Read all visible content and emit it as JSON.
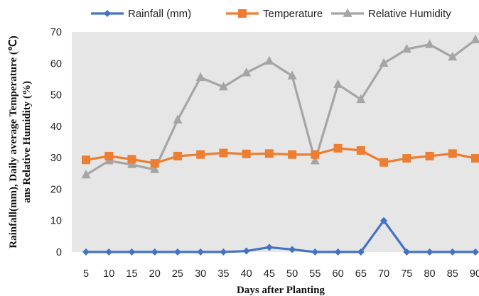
{
  "chart_data": {
    "type": "line",
    "x": [
      5,
      10,
      15,
      20,
      25,
      30,
      35,
      40,
      45,
      50,
      55,
      60,
      65,
      70,
      75,
      80,
      85,
      90
    ],
    "x_tick_labels": [
      "5",
      "10",
      "15",
      "20",
      "25",
      "30",
      "35",
      "40",
      "45",
      "50",
      "55",
      "60",
      "65",
      "70",
      "75",
      "80",
      "85",
      "90"
    ],
    "xlabel": "Days after Planting",
    "ylabel_line1": "Rainfall(mm), Daily average Temperature (℃)",
    "ylabel_line2": "ans Relative Humidity (%)",
    "ylim": [
      0,
      70
    ],
    "y_ticks": [
      0,
      10,
      20,
      30,
      40,
      50,
      60,
      70
    ],
    "y_tick_labels": [
      "0",
      "10",
      "20",
      "30",
      "40",
      "50",
      "60",
      "70"
    ],
    "grid": false,
    "plot_background": "#e6e6e6",
    "legend_position": "top",
    "series": [
      {
        "name": "Rainfall (mm)",
        "color": "#4472c4",
        "marker": "diamond",
        "values": [
          0,
          0,
          0,
          0,
          0,
          0,
          0,
          0.3,
          1.5,
          0.8,
          0,
          0,
          0,
          10,
          0,
          0,
          0,
          0
        ]
      },
      {
        "name": "Temperature",
        "color": "#ed7d31",
        "marker": "square",
        "values": [
          29.3,
          30.5,
          29.5,
          28.2,
          30.5,
          31,
          31.5,
          31.2,
          31.3,
          31,
          31,
          33,
          32.3,
          28.5,
          29.8,
          30.5,
          31.3,
          29.8
        ]
      },
      {
        "name": "Relative Humidity",
        "color": "#a5a5a5",
        "marker": "triangle",
        "values": [
          24.5,
          29,
          27.8,
          26.2,
          42,
          55.5,
          52.5,
          57,
          60.7,
          56,
          29,
          53.3,
          48.5,
          60,
          64.5,
          66,
          62,
          67.5
        ]
      }
    ]
  }
}
